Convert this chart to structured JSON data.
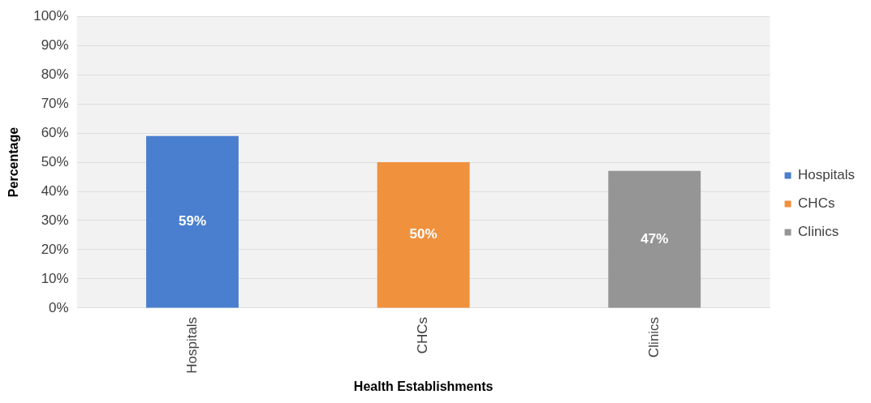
{
  "chart_data": {
    "type": "bar",
    "xlabel": "Health Establishments",
    "ylabel": "Percentage",
    "categories": [
      "Hospitals",
      "CHCs",
      "Clinics"
    ],
    "series": [
      {
        "name": "Hospitals",
        "color": "#4a7fcf",
        "values": [
          59,
          null,
          null
        ],
        "value_labels": [
          "59%",
          null,
          null
        ]
      },
      {
        "name": "CHCs",
        "color": "#f0913e",
        "values": [
          null,
          50,
          null
        ],
        "value_labels": [
          null,
          "50%",
          null
        ]
      },
      {
        "name": "Clinics",
        "color": "#959595",
        "values": [
          null,
          null,
          47
        ],
        "value_labels": [
          null,
          null,
          "47%"
        ]
      }
    ],
    "ylim": [
      0,
      100
    ],
    "yticks": [
      {
        "value": 0,
        "label": "0%"
      },
      {
        "value": 10,
        "label": "10%"
      },
      {
        "value": 20,
        "label": "20%"
      },
      {
        "value": 30,
        "label": "30%"
      },
      {
        "value": 40,
        "label": "40%"
      },
      {
        "value": 50,
        "label": "50%"
      },
      {
        "value": 60,
        "label": "60%"
      },
      {
        "value": 70,
        "label": "70%"
      },
      {
        "value": 80,
        "label": "80%"
      },
      {
        "value": 90,
        "label": "90%"
      },
      {
        "value": 100,
        "label": "100%"
      }
    ],
    "grid": "y",
    "legend": "right"
  }
}
